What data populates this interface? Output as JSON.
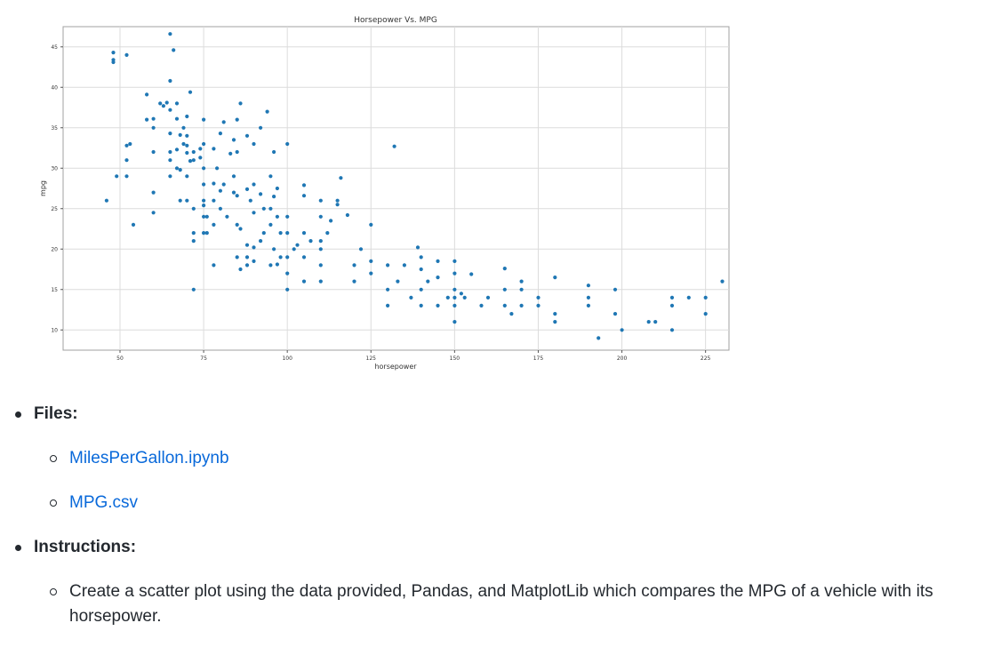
{
  "chart_data": {
    "type": "scatter",
    "title": "Horsepower Vs. MPG",
    "xlabel": "horsepower",
    "ylabel": "mpg",
    "xlim": [
      33,
      232
    ],
    "ylim": [
      7.5,
      47.5
    ],
    "xticks": [
      50,
      75,
      100,
      125,
      150,
      175,
      200,
      225
    ],
    "yticks": [
      10,
      15,
      20,
      25,
      30,
      35,
      40,
      45
    ],
    "grid": true,
    "color": "#1f77b4",
    "points": [
      [
        46,
        26
      ],
      [
        48,
        44.3
      ],
      [
        48,
        43.4
      ],
      [
        48,
        43.1
      ],
      [
        49,
        29
      ],
      [
        52,
        44
      ],
      [
        52,
        31
      ],
      [
        52,
        29
      ],
      [
        52,
        32.8
      ],
      [
        53,
        33
      ],
      [
        54,
        23
      ],
      [
        58,
        39.1
      ],
      [
        58,
        36
      ],
      [
        60,
        36.1
      ],
      [
        60,
        35
      ],
      [
        60,
        32
      ],
      [
        60,
        27
      ],
      [
        60,
        24.5
      ],
      [
        62,
        38
      ],
      [
        63,
        37.7
      ],
      [
        64,
        38.1
      ],
      [
        65,
        40.8
      ],
      [
        65,
        46.6
      ],
      [
        65,
        37.2
      ],
      [
        65,
        32
      ],
      [
        65,
        31
      ],
      [
        65,
        29
      ],
      [
        65,
        34.3
      ],
      [
        66,
        44.6
      ],
      [
        67,
        36.1
      ],
      [
        67,
        32.3
      ],
      [
        67,
        30
      ],
      [
        67,
        38
      ],
      [
        68,
        29.8
      ],
      [
        68,
        26
      ],
      [
        68,
        34.1
      ],
      [
        69,
        35
      ],
      [
        69,
        33
      ],
      [
        70,
        32.8
      ],
      [
        70,
        31.9
      ],
      [
        70,
        29
      ],
      [
        70,
        34
      ],
      [
        70,
        26
      ],
      [
        70,
        36.4
      ],
      [
        71,
        39.4
      ],
      [
        71,
        30.9
      ],
      [
        72,
        31
      ],
      [
        72,
        25
      ],
      [
        72,
        32
      ],
      [
        72,
        15
      ],
      [
        72,
        22
      ],
      [
        72,
        21
      ],
      [
        74,
        31.3
      ],
      [
        74,
        32.4
      ],
      [
        75,
        28
      ],
      [
        75,
        36
      ],
      [
        75,
        30
      ],
      [
        75,
        25.4
      ],
      [
        75,
        22
      ],
      [
        75,
        26
      ],
      [
        75,
        24
      ],
      [
        75,
        33
      ],
      [
        76,
        24
      ],
      [
        76,
        22
      ],
      [
        78,
        32.4
      ],
      [
        78,
        28.1
      ],
      [
        78,
        26
      ],
      [
        78,
        23
      ],
      [
        78,
        18
      ],
      [
        79,
        30
      ],
      [
        80,
        34.3
      ],
      [
        80,
        27.2
      ],
      [
        80,
        25
      ],
      [
        81,
        35.7
      ],
      [
        81,
        28
      ],
      [
        82,
        24
      ],
      [
        83,
        31.8
      ],
      [
        84,
        33.5
      ],
      [
        84,
        29
      ],
      [
        84,
        27
      ],
      [
        85,
        36
      ],
      [
        85,
        32
      ],
      [
        85,
        26.6
      ],
      [
        85,
        23
      ],
      [
        85,
        19
      ],
      [
        86,
        38
      ],
      [
        86,
        22.5
      ],
      [
        86,
        17.5
      ],
      [
        88,
        34
      ],
      [
        88,
        27.4
      ],
      [
        88,
        20.5
      ],
      [
        88,
        19
      ],
      [
        88,
        18
      ],
      [
        89,
        26
      ],
      [
        90,
        33
      ],
      [
        90,
        28
      ],
      [
        90,
        24.5
      ],
      [
        90,
        20.2
      ],
      [
        90,
        18.5
      ],
      [
        92,
        35
      ],
      [
        92,
        26.8
      ],
      [
        92,
        21
      ],
      [
        93,
        25
      ],
      [
        93,
        22
      ],
      [
        94,
        37
      ],
      [
        95,
        29
      ],
      [
        95,
        25
      ],
      [
        95,
        23
      ],
      [
        95,
        18
      ],
      [
        96,
        32
      ],
      [
        96,
        26.5
      ],
      [
        96,
        20
      ],
      [
        97,
        27.5
      ],
      [
        97,
        24
      ],
      [
        97,
        18.1
      ],
      [
        98,
        22
      ],
      [
        98,
        19
      ],
      [
        100,
        33
      ],
      [
        100,
        24
      ],
      [
        100,
        22
      ],
      [
        100,
        19
      ],
      [
        100,
        17
      ],
      [
        100,
        15
      ],
      [
        102,
        20
      ],
      [
        103,
        20.5
      ],
      [
        105,
        27.9
      ],
      [
        105,
        26.6
      ],
      [
        105,
        22
      ],
      [
        105,
        19
      ],
      [
        105,
        16
      ],
      [
        107,
        21
      ],
      [
        110,
        26
      ],
      [
        110,
        24
      ],
      [
        110,
        21
      ],
      [
        110,
        20
      ],
      [
        110,
        18
      ],
      [
        110,
        16
      ],
      [
        112,
        22
      ],
      [
        113,
        23.5
      ],
      [
        115,
        26
      ],
      [
        115,
        25.5
      ],
      [
        116,
        28.8
      ],
      [
        118,
        24.2
      ],
      [
        120,
        18
      ],
      [
        120,
        16
      ],
      [
        122,
        20
      ],
      [
        125,
        23
      ],
      [
        125,
        18.5
      ],
      [
        125,
        17
      ],
      [
        130,
        18
      ],
      [
        130,
        15
      ],
      [
        130,
        13
      ],
      [
        132,
        32.7
      ],
      [
        133,
        16
      ],
      [
        135,
        18
      ],
      [
        137,
        14
      ],
      [
        139,
        20.2
      ],
      [
        140,
        19
      ],
      [
        140,
        17.5
      ],
      [
        140,
        15
      ],
      [
        140,
        13
      ],
      [
        142,
        16
      ],
      [
        145,
        18.5
      ],
      [
        145,
        16.5
      ],
      [
        145,
        13
      ],
      [
        148,
        14
      ],
      [
        150,
        18.5
      ],
      [
        150,
        17
      ],
      [
        150,
        15
      ],
      [
        150,
        14
      ],
      [
        150,
        13
      ],
      [
        150,
        11
      ],
      [
        152,
        14.5
      ],
      [
        153,
        14
      ],
      [
        155,
        16.9
      ],
      [
        158,
        13
      ],
      [
        160,
        14
      ],
      [
        165,
        17.6
      ],
      [
        165,
        15
      ],
      [
        165,
        13
      ],
      [
        167,
        12
      ],
      [
        170,
        16
      ],
      [
        170,
        15
      ],
      [
        170,
        13
      ],
      [
        175,
        14
      ],
      [
        175,
        13
      ],
      [
        180,
        16.5
      ],
      [
        180,
        12
      ],
      [
        180,
        11
      ],
      [
        190,
        15.5
      ],
      [
        190,
        14
      ],
      [
        190,
        13
      ],
      [
        193,
        9
      ],
      [
        198,
        15
      ],
      [
        198,
        12
      ],
      [
        200,
        10
      ],
      [
        208,
        11
      ],
      [
        210,
        11
      ],
      [
        215,
        14
      ],
      [
        215,
        13
      ],
      [
        215,
        10
      ],
      [
        220,
        14
      ],
      [
        225,
        14
      ],
      [
        225,
        12
      ],
      [
        230,
        16
      ]
    ]
  },
  "readme": {
    "files_label": "Files:",
    "files": [
      "MilesPerGallon.ipynb",
      "MPG.csv"
    ],
    "instructions_label": "Instructions:",
    "instructions": [
      "Create a scatter plot using the data provided, Pandas, and MatplotLib which compares the MPG of a vehicle with its horsepower."
    ]
  }
}
